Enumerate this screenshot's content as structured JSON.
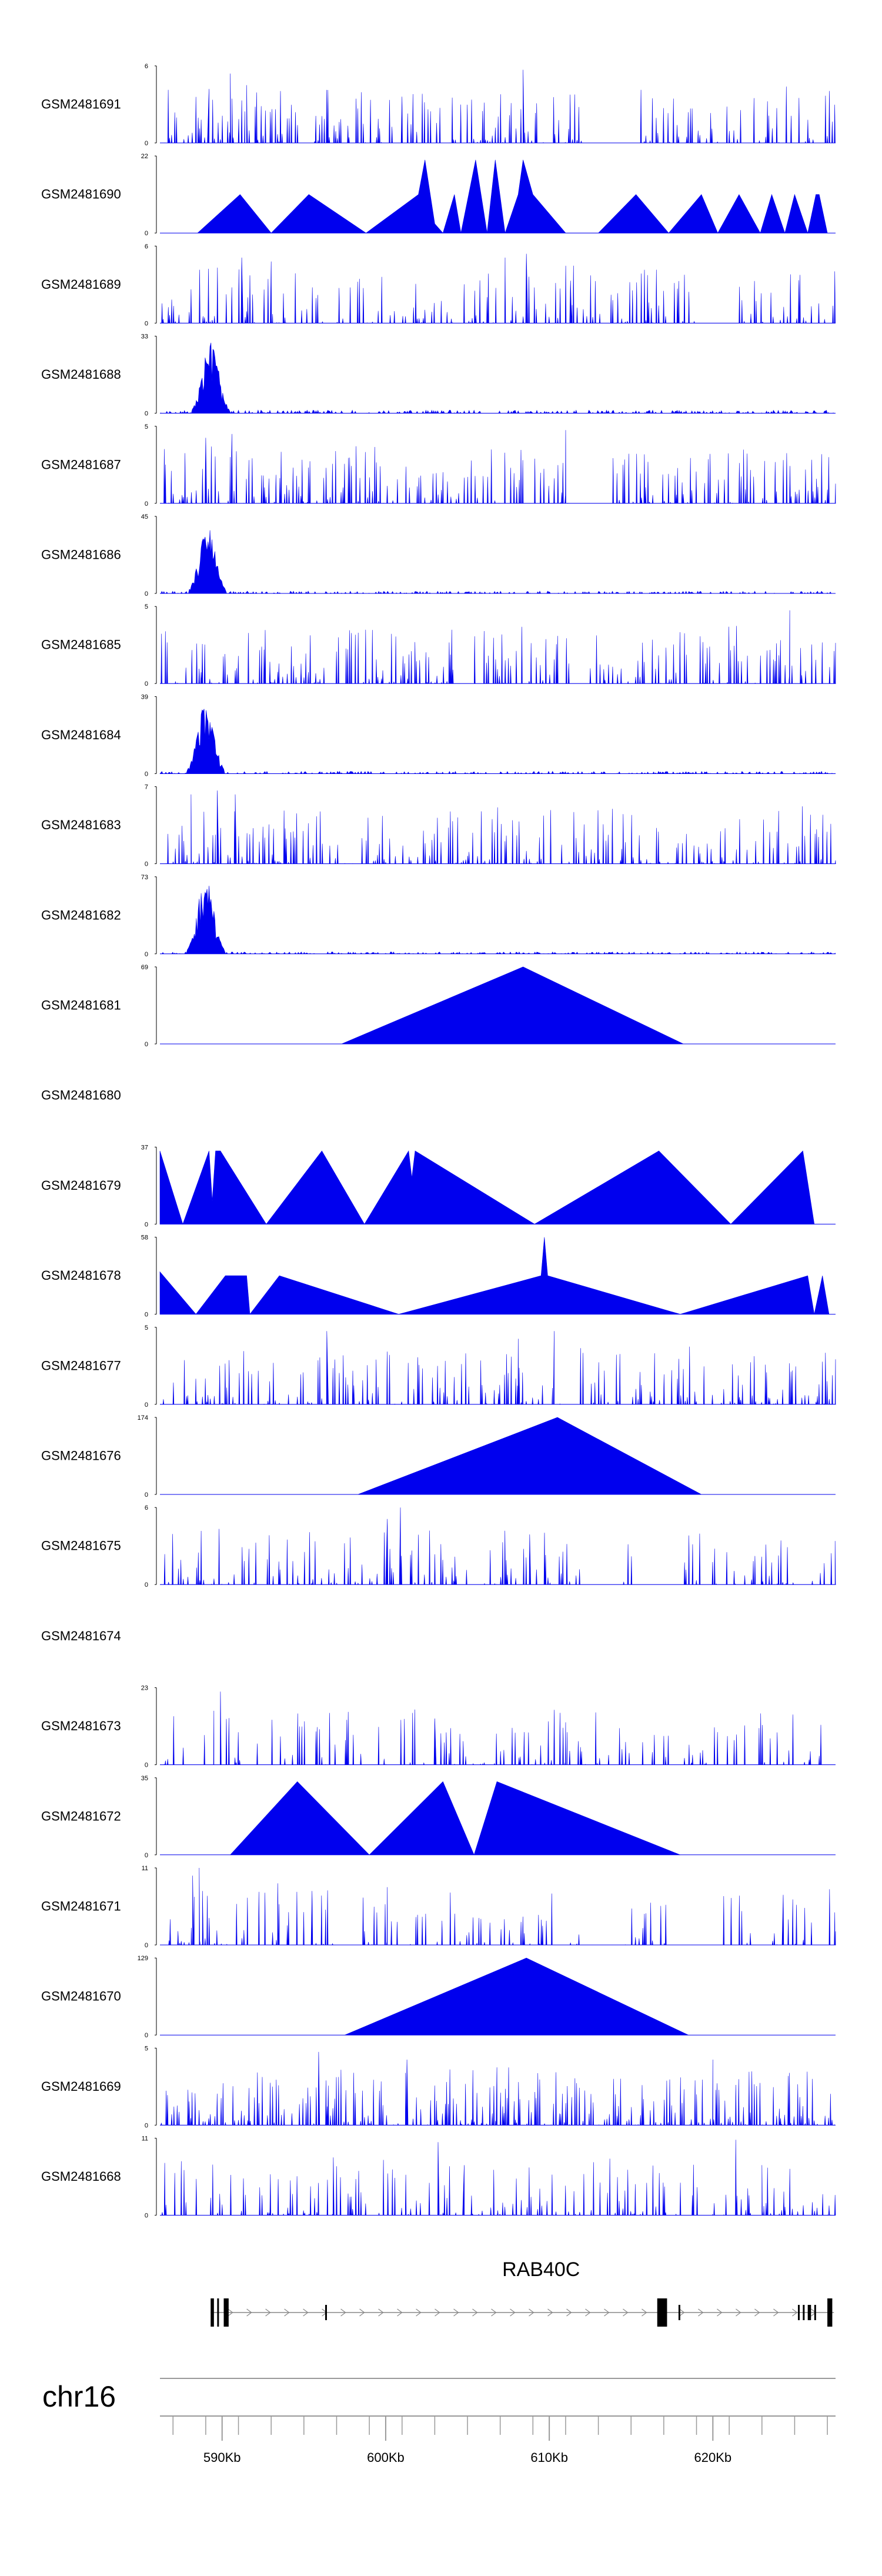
{
  "chart_data": {
    "type": "area",
    "title": "",
    "xlabel": "",
    "chromosome": "chr16",
    "xlim_kb": [
      586.2,
      627.5
    ],
    "x_ticks_kb": [
      590,
      600,
      610,
      620
    ],
    "x_tick_labels": [
      "590Kb",
      "600Kb",
      "610Kb",
      "620Kb"
    ],
    "fill_color": "#0000ee",
    "gene": {
      "name": "RAB40C",
      "strand": "+",
      "start_kb": 589.3,
      "end_kb": 627.4,
      "exons_kb": [
        [
          589.3,
          589.5
        ],
        [
          589.7,
          589.8
        ],
        [
          590.1,
          590.4
        ],
        [
          596.3,
          596.4
        ],
        [
          616.6,
          617.2
        ],
        [
          617.9,
          618.0
        ],
        [
          625.2,
          625.3
        ],
        [
          625.5,
          625.6
        ],
        [
          625.8,
          626.0
        ],
        [
          626.2,
          626.3
        ],
        [
          627.0,
          627.3
        ]
      ]
    },
    "tracks": [
      {
        "name": "GSM2481691",
        "ymax": 6,
        "style": "dense",
        "seed": 11,
        "density": 0.55,
        "peaks": [
          [
            589.2,
            0.7
          ],
          [
            590.5,
            0.9
          ],
          [
            591.5,
            0.75
          ],
          [
            601.0,
            0.6
          ],
          [
            608.4,
            0.95
          ]
        ],
        "gaps": [
          [
            612.0,
            615.5
          ]
        ]
      },
      {
        "name": "GSM2481690",
        "ymax": 22,
        "style": "anchors",
        "points": [
          [
            588.5,
            0
          ],
          [
            591.1,
            0.5
          ],
          [
            593.0,
            0
          ],
          [
            595.3,
            0.5
          ],
          [
            598.8,
            0
          ],
          [
            602.0,
            0.5
          ],
          [
            602.4,
            0.95
          ],
          [
            603.0,
            0.12
          ],
          [
            603.5,
            0
          ],
          [
            604.2,
            0.5
          ],
          [
            604.6,
            0
          ],
          [
            605.5,
            0.95
          ],
          [
            606.2,
            0
          ],
          [
            606.7,
            0.95
          ],
          [
            607.3,
            0
          ],
          [
            608.1,
            0.5
          ],
          [
            608.4,
            0.95
          ],
          [
            609.0,
            0.5
          ],
          [
            611.0,
            0
          ],
          [
            613.0,
            0
          ],
          [
            615.3,
            0.5
          ],
          [
            617.3,
            0
          ],
          [
            619.3,
            0.5
          ],
          [
            620.3,
            0
          ],
          [
            621.6,
            0.5
          ],
          [
            622.9,
            0
          ],
          [
            623.6,
            0.5
          ],
          [
            624.4,
            0
          ],
          [
            625.0,
            0.5
          ],
          [
            625.8,
            0
          ],
          [
            626.3,
            0.5
          ],
          [
            626.5,
            0.5
          ],
          [
            627.0,
            0
          ]
        ]
      },
      {
        "name": "GSM2481689",
        "ymax": 6,
        "style": "dense",
        "seed": 23,
        "density": 0.5,
        "peaks": [
          [
            591.2,
            0.85
          ],
          [
            593.0,
            0.8
          ],
          [
            607.3,
            0.85
          ],
          [
            608.6,
            0.9
          ],
          [
            611.3,
            0.55
          ]
        ],
        "gaps": [
          [
            619.0,
            621.5
          ]
        ]
      },
      {
        "name": "GSM2481688",
        "ymax": 33,
        "style": "bump",
        "seed": 31,
        "peakCenter": 589.3,
        "peakWidth": 1.0,
        "peakHeight": 0.92,
        "baseline": 0.04
      },
      {
        "name": "GSM2481687",
        "ymax": 5,
        "style": "dense",
        "seed": 41,
        "density": 0.58,
        "peaks": [
          [
            589.0,
            0.85
          ],
          [
            590.6,
            0.9
          ],
          [
            611.0,
            0.95
          ]
        ],
        "gaps": [
          [
            611.2,
            613.8
          ]
        ]
      },
      {
        "name": "GSM2481686",
        "ymax": 45,
        "style": "bump",
        "seed": 53,
        "peakCenter": 589.1,
        "peakWidth": 1.0,
        "peakHeight": 0.9,
        "baseline": 0.03
      },
      {
        "name": "GSM2481685",
        "ymax": 5,
        "style": "dense",
        "seed": 61,
        "density": 0.52,
        "peaks": [
          [
            624.7,
            0.95
          ]
        ],
        "gaps": [
          [
            611.3,
            612.5
          ]
        ]
      },
      {
        "name": "GSM2481684",
        "ymax": 39,
        "style": "bump",
        "seed": 71,
        "peakCenter": 589.0,
        "peakWidth": 1.0,
        "peakHeight": 0.93,
        "baseline": 0.03
      },
      {
        "name": "GSM2481683",
        "ymax": 7,
        "style": "dense",
        "seed": 83,
        "density": 0.56,
        "peaks": [
          [
            588.1,
            0.9
          ],
          [
            589.7,
            0.95
          ],
          [
            590.8,
            0.9
          ]
        ],
        "gaps": []
      },
      {
        "name": "GSM2481682",
        "ymax": 73,
        "style": "bump",
        "seed": 97,
        "peakCenter": 589.0,
        "peakWidth": 1.0,
        "peakHeight": 0.97,
        "baseline": 0.025
      },
      {
        "name": "GSM2481681",
        "ymax": 69,
        "style": "anchors",
        "points": [
          [
            597.3,
            0
          ],
          [
            608.4,
            1.0
          ],
          [
            618.2,
            0
          ]
        ]
      },
      {
        "name": "GSM2481680",
        "ymax": null,
        "style": "empty"
      },
      {
        "name": "GSM2481679",
        "ymax": 37,
        "style": "anchors",
        "points": [
          [
            586.2,
            0.95
          ],
          [
            587.6,
            0
          ],
          [
            589.2,
            0.95
          ],
          [
            589.4,
            0.3
          ],
          [
            589.6,
            0.95
          ],
          [
            589.9,
            0.95
          ],
          [
            592.7,
            0
          ],
          [
            596.1,
            0.95
          ],
          [
            598.7,
            0
          ],
          [
            601.4,
            0.95
          ],
          [
            601.6,
            0.6
          ],
          [
            601.8,
            0.95
          ],
          [
            609.1,
            0
          ],
          [
            616.7,
            0.95
          ],
          [
            621.1,
            0
          ],
          [
            625.5,
            0.95
          ],
          [
            626.2,
            0
          ]
        ]
      },
      {
        "name": "GSM2481678",
        "ymax": 58,
        "style": "anchors",
        "points": [
          [
            586.2,
            0.55
          ],
          [
            588.4,
            0
          ],
          [
            590.2,
            0.5
          ],
          [
            591.5,
            0.5
          ],
          [
            591.7,
            0
          ],
          [
            593.5,
            0.5
          ],
          [
            600.8,
            0
          ],
          [
            609.5,
            0.5
          ],
          [
            609.7,
            1.0
          ],
          [
            609.9,
            0.5
          ],
          [
            618.0,
            0
          ],
          [
            625.8,
            0.5
          ],
          [
            626.2,
            0
          ],
          [
            626.7,
            0.5
          ],
          [
            627.1,
            0
          ]
        ]
      },
      {
        "name": "GSM2481677",
        "ymax": 5,
        "style": "dense",
        "seed": 101,
        "density": 0.55,
        "peaks": [
          [
            596.4,
            0.95
          ],
          [
            608.1,
            0.85
          ],
          [
            610.3,
            0.95
          ]
        ],
        "gaps": [
          [
            611.0,
            611.9
          ]
        ]
      },
      {
        "name": "GSM2481676",
        "ymax": 174,
        "style": "anchors",
        "points": [
          [
            598.3,
            0
          ],
          [
            610.5,
            1.0
          ],
          [
            619.3,
            0
          ]
        ]
      },
      {
        "name": "GSM2481675",
        "ymax": 6,
        "style": "dense",
        "seed": 113,
        "density": 0.45,
        "peaks": [
          [
            600.1,
            0.85
          ],
          [
            600.9,
            1.0
          ],
          [
            608.8,
            0.65
          ]
        ],
        "gaps": [
          [
            612.0,
            614.5
          ],
          [
            615.2,
            618.0
          ],
          [
            625.0,
            626.0
          ]
        ]
      },
      {
        "name": "GSM2481674",
        "ymax": null,
        "style": "empty"
      },
      {
        "name": "GSM2481673",
        "ymax": 23,
        "style": "dense",
        "seed": 127,
        "density": 0.4,
        "peaks": [
          [
            589.5,
            0.7
          ],
          [
            589.9,
            0.95
          ],
          [
            603.0,
            0.6
          ],
          [
            611.0,
            0.55
          ]
        ],
        "gaps": []
      },
      {
        "name": "GSM2481672",
        "ymax": 35,
        "style": "anchors",
        "points": [
          [
            590.5,
            0
          ],
          [
            594.6,
            0.95
          ],
          [
            599.0,
            0
          ],
          [
            603.5,
            0.95
          ],
          [
            605.4,
            0
          ],
          [
            606.8,
            0.95
          ],
          [
            618.0,
            0
          ]
        ]
      },
      {
        "name": "GSM2481671",
        "ymax": 11,
        "style": "dense",
        "seed": 139,
        "density": 0.4,
        "peaks": [
          [
            588.2,
            0.9
          ],
          [
            588.8,
            0.7
          ],
          [
            588.6,
            1.0
          ],
          [
            593.4,
            0.8
          ],
          [
            595.5,
            0.7
          ],
          [
            600.1,
            0.75
          ],
          [
            624.3,
            0.65
          ]
        ],
        "gaps": [
          [
            612.0,
            614.5
          ],
          [
            617.3,
            620.5
          ],
          [
            622.5,
            623.5
          ]
        ]
      },
      {
        "name": "GSM2481670",
        "ymax": 129,
        "style": "anchors",
        "points": [
          [
            597.5,
            0
          ],
          [
            608.6,
            1.0
          ],
          [
            618.5,
            0
          ]
        ]
      },
      {
        "name": "GSM2481669",
        "ymax": 5,
        "style": "dense",
        "seed": 151,
        "density": 0.65,
        "peaks": [
          [
            595.9,
            0.95
          ],
          [
            601.3,
            0.85
          ],
          [
            606.8,
            0.75
          ],
          [
            620.0,
            0.85
          ]
        ],
        "gaps": []
      },
      {
        "name": "GSM2481668",
        "ymax": 11,
        "style": "dense",
        "seed": 163,
        "density": 0.45,
        "peaks": [
          [
            596.8,
            0.75
          ],
          [
            603.2,
            0.95
          ],
          [
            621.4,
            0.98
          ],
          [
            623.0,
            0.65
          ],
          [
            604.8,
            0.65
          ]
        ],
        "gaps": []
      }
    ]
  }
}
